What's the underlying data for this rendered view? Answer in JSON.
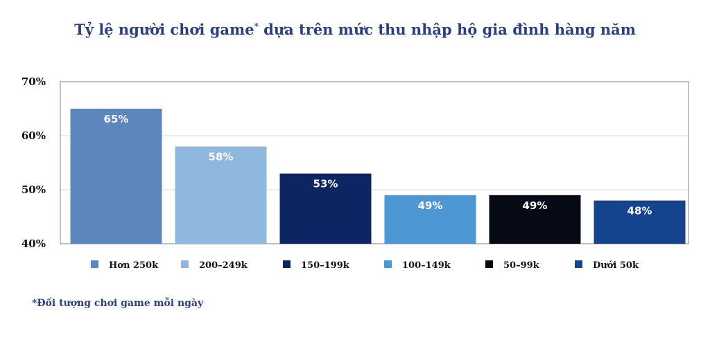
{
  "title": {
    "main": "Tỷ lệ người chơi game",
    "mark": "*",
    "rest": " dựa trên mức thu nhập hộ gia đình hàng năm"
  },
  "footnote": "*Đối tượng chơi game mỗi ngày",
  "colors": {
    "title": "#2b3f86",
    "bars": [
      "#5b87bd",
      "#8fb8de",
      "#0c2563",
      "#4d97d5",
      "#050a14",
      "#15438e"
    ],
    "grid": "#d9d9d9",
    "frame": "#808080"
  },
  "chart_data": {
    "type": "bar",
    "categories": [
      "Hơn 250k",
      "200–249k",
      "150–199k",
      "100–149k",
      "50–99k",
      "Dưới 50k"
    ],
    "values": [
      65,
      58,
      53,
      49,
      49,
      48
    ],
    "data_labels": [
      "65%",
      "58%",
      "53%",
      "49%",
      "49%",
      "48%"
    ],
    "yticks": [
      40,
      50,
      60,
      70
    ],
    "ytick_labels": [
      "40%",
      "50%",
      "60%",
      "70%"
    ],
    "ylim": [
      40,
      70
    ],
    "grid": true,
    "legend": "bottom"
  }
}
